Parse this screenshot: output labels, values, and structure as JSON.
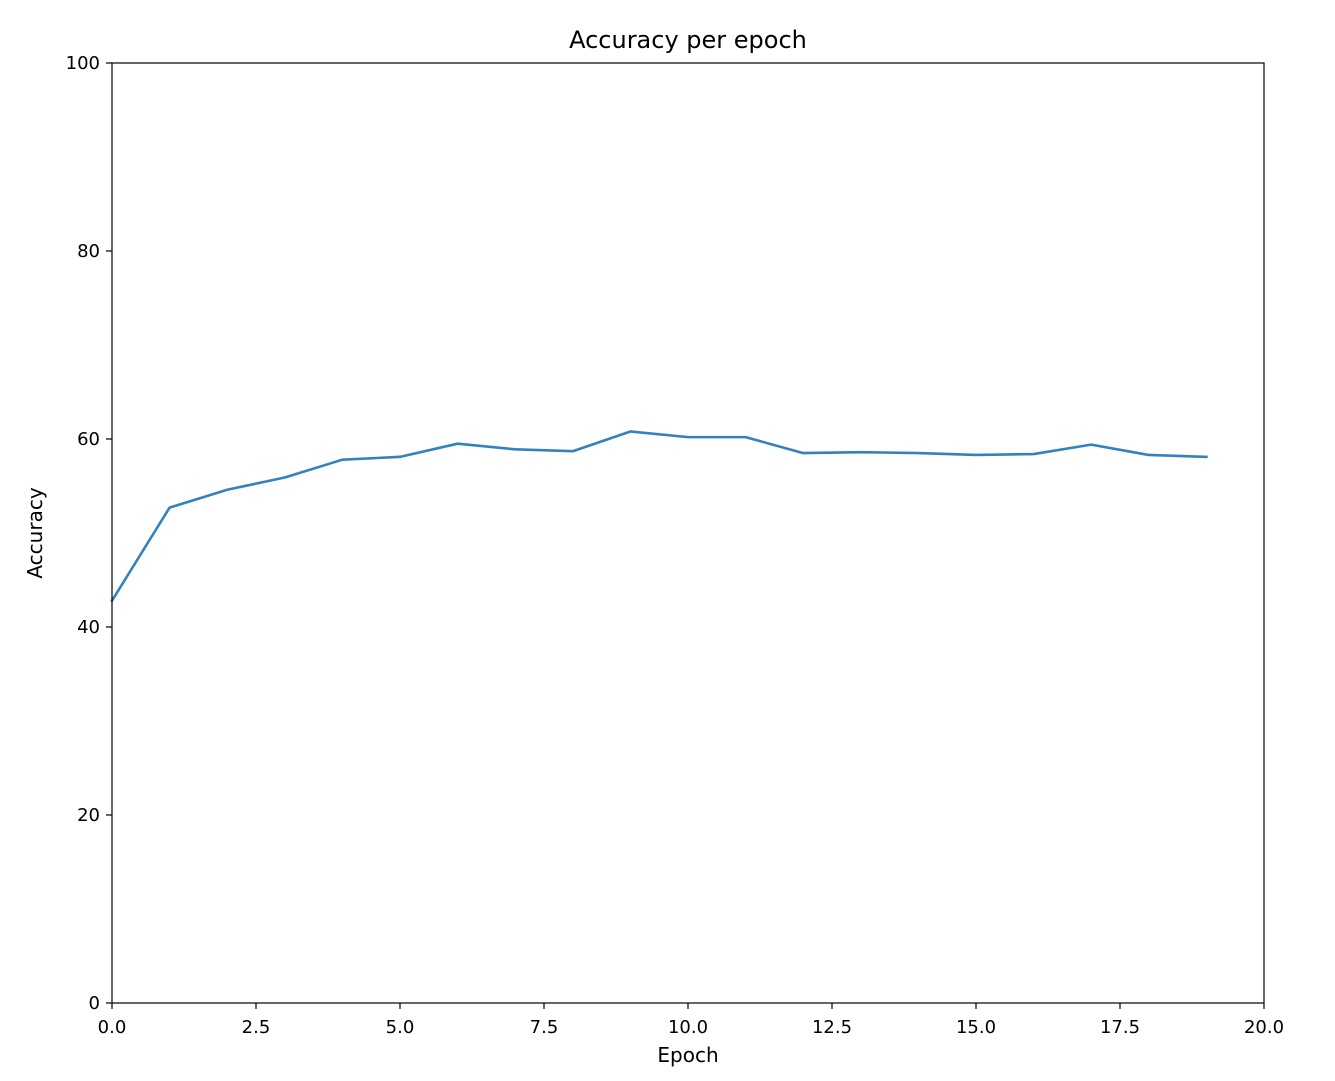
{
  "chart_data": {
    "type": "line",
    "title": "Accuracy per epoch",
    "xlabel": "Epoch",
    "ylabel": "Accuracy",
    "xlim": [
      0,
      20
    ],
    "ylim": [
      0,
      100
    ],
    "xticks": [
      0,
      2.5,
      5,
      7.5,
      10,
      12.5,
      15,
      17.5,
      20
    ],
    "xtick_labels": [
      "0.0",
      "2.5",
      "5.0",
      "7.5",
      "10.0",
      "12.5",
      "15.0",
      "17.5",
      "20.0"
    ],
    "yticks": [
      0,
      20,
      40,
      60,
      80,
      100
    ],
    "ytick_labels": [
      "0",
      "20",
      "40",
      "60",
      "80",
      "100"
    ],
    "grid": false,
    "series": [
      {
        "color": "#3182bd",
        "x": [
          0,
          1,
          2,
          3,
          4,
          5,
          6,
          7,
          8,
          9,
          10,
          11,
          12,
          13,
          14,
          15,
          16,
          17,
          18,
          19
        ],
        "y": [
          42.8,
          52.7,
          54.6,
          55.9,
          57.8,
          58.1,
          59.5,
          58.9,
          58.7,
          60.8,
          60.2,
          60.2,
          58.5,
          58.6,
          58.5,
          58.3,
          58.4,
          59.4,
          58.3,
          58.1
        ]
      }
    ]
  }
}
